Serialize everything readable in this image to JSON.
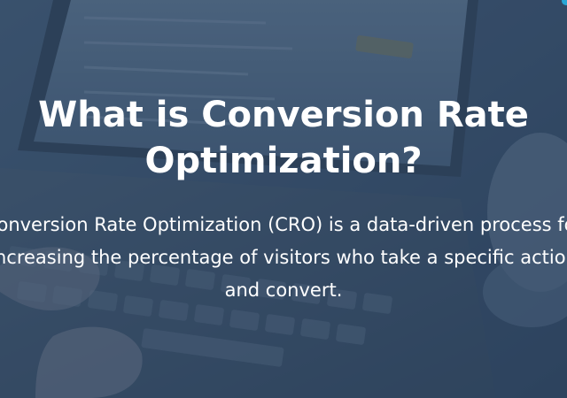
{
  "hero": {
    "title": "What is Conversion Rate Optimization?",
    "description": "Conversion Rate Optimization (CRO) is a data-driven process for increasing the percentage of visitors who take a specific action and convert."
  },
  "colors": {
    "overlay": "#2c425d",
    "text": "#ffffff",
    "accent": "#2aa6d6"
  },
  "background": {
    "image_subject": "laptop-keyboard-with-hands-photo"
  }
}
